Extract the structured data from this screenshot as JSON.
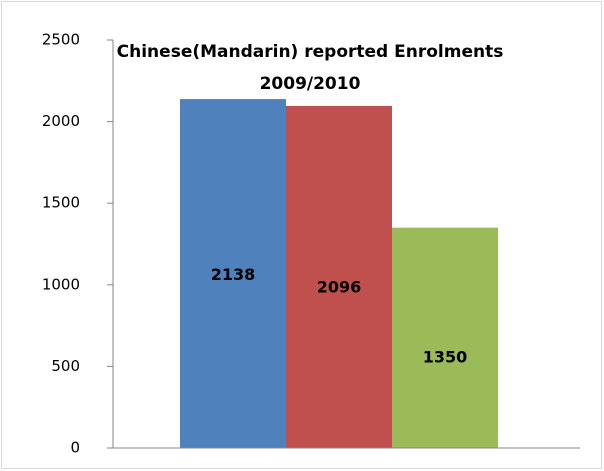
{
  "chart_data": {
    "type": "bar",
    "title": [
      "Chinese(Mandarin) reported Enrolments",
      "2009/2010"
    ],
    "categories": [
      null,
      null,
      null
    ],
    "values": [
      2138,
      2096,
      1350
    ],
    "colors": [
      "#4f81bd",
      "#c0504d",
      "#9bbb59"
    ],
    "ylim": [
      0,
      2500
    ],
    "yticks": [
      0,
      500,
      1000,
      1500,
      2000,
      2500
    ],
    "grid": false,
    "data_labels": true
  }
}
